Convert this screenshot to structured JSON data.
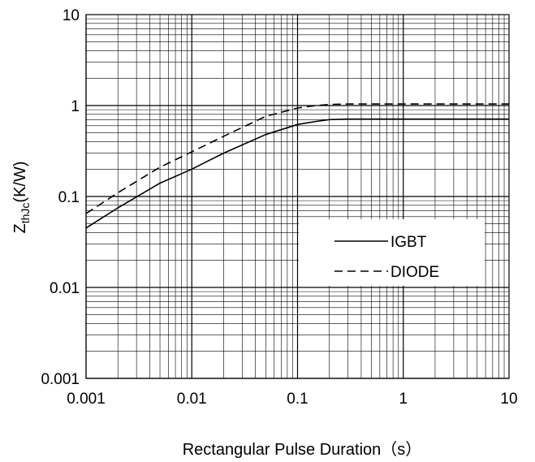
{
  "chart_data": {
    "type": "line",
    "x_scale": "log",
    "y_scale": "log",
    "xlim": [
      0.001,
      10
    ],
    "ylim": [
      0.001,
      10
    ],
    "xlabel": "Rectangular Pulse Duration（s）",
    "ylabel_main": "Z",
    "ylabel_sub": "thJc",
    "ylabel_unit": "(K/W)",
    "x_ticks": [
      "0.001",
      "0.01",
      "0.1",
      "1",
      "10"
    ],
    "y_ticks": [
      "0.001",
      "0.01",
      "0.1",
      "1",
      "10"
    ],
    "grid": true,
    "legend_position": "right-middle",
    "series": [
      {
        "name": "IGBT",
        "style": "solid",
        "color": "#000000",
        "x": [
          0.001,
          0.002,
          0.005,
          0.01,
          0.02,
          0.05,
          0.1,
          0.15,
          0.2,
          0.3,
          0.5,
          1,
          2,
          5,
          10
        ],
        "y": [
          0.045,
          0.075,
          0.14,
          0.2,
          0.3,
          0.48,
          0.62,
          0.67,
          0.7,
          0.71,
          0.71,
          0.71,
          0.71,
          0.71,
          0.71
        ]
      },
      {
        "name": "DIODE",
        "style": "dashed",
        "color": "#000000",
        "x": [
          0.001,
          0.002,
          0.005,
          0.01,
          0.02,
          0.05,
          0.1,
          0.15,
          0.2,
          0.3,
          0.5,
          1,
          2,
          5,
          10
        ],
        "y": [
          0.065,
          0.11,
          0.21,
          0.31,
          0.46,
          0.76,
          0.94,
          1.0,
          1.03,
          1.04,
          1.04,
          1.04,
          1.04,
          1.04,
          1.04
        ]
      }
    ]
  }
}
